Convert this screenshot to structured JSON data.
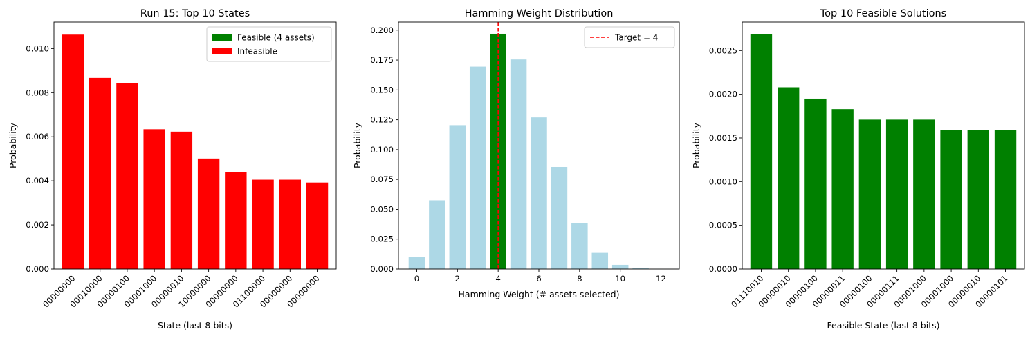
{
  "chart_data": [
    {
      "type": "bar",
      "title": "Run 15: Top 10 States",
      "xlabel": "State (last 8 bits)",
      "ylabel": "Probability",
      "categories": [
        "00000000",
        "00010000",
        "00000100",
        "00001000",
        "00000010",
        "10000000",
        "00000000",
        "01100000",
        "00000000",
        "00000000"
      ],
      "values": [
        0.01063,
        0.00867,
        0.00843,
        0.00634,
        0.00623,
        0.00501,
        0.00438,
        0.00405,
        0.00405,
        0.00392
      ],
      "bar_colors": [
        "#ff0000",
        "#ff0000",
        "#ff0000",
        "#ff0000",
        "#ff0000",
        "#ff0000",
        "#ff0000",
        "#ff0000",
        "#ff0000",
        "#ff0000"
      ],
      "ylim": [
        0,
        0.0112
      ],
      "yticks": [
        0.0,
        0.002,
        0.004,
        0.006,
        0.008,
        0.01
      ],
      "ytick_labels": [
        "0.000",
        "0.002",
        "0.004",
        "0.006",
        "0.008",
        "0.010"
      ],
      "grid": false,
      "legend": {
        "position": "top-right",
        "entries": [
          {
            "label": "Feasible (4 assets)",
            "color": "#008000",
            "kind": "patch"
          },
          {
            "label": "Infeasible",
            "color": "#ff0000",
            "kind": "patch"
          }
        ]
      }
    },
    {
      "type": "bar",
      "title": "Hamming Weight Distribution",
      "xlabel": "Hamming Weight (# assets selected)",
      "ylabel": "Probability",
      "x": [
        0,
        1,
        2,
        3,
        4,
        5,
        6,
        7,
        8,
        9,
        10,
        11,
        12
      ],
      "values": [
        0.0103,
        0.0575,
        0.1205,
        0.1695,
        0.197,
        0.1755,
        0.127,
        0.0855,
        0.0385,
        0.0135,
        0.0035,
        0.0008,
        0.0001
      ],
      "bar_colors": [
        "#add8e6",
        "#add8e6",
        "#add8e6",
        "#add8e6",
        "#008000",
        "#add8e6",
        "#add8e6",
        "#add8e6",
        "#add8e6",
        "#add8e6",
        "#add8e6",
        "#add8e6",
        "#add8e6"
      ],
      "xlim": [
        -0.9,
        12.9
      ],
      "xticks": [
        0,
        2,
        4,
        6,
        8,
        10,
        12
      ],
      "xtick_labels": [
        "0",
        "2",
        "4",
        "6",
        "8",
        "10",
        "12"
      ],
      "ylim": [
        0,
        0.2068
      ],
      "yticks": [
        0.0,
        0.025,
        0.05,
        0.075,
        0.1,
        0.125,
        0.15,
        0.175,
        0.2
      ],
      "ytick_labels": [
        "0.000",
        "0.025",
        "0.050",
        "0.075",
        "0.100",
        "0.125",
        "0.150",
        "0.175",
        "0.200"
      ],
      "vline": {
        "x": 4,
        "color": "#ff0000",
        "style": "dashed"
      },
      "grid": false,
      "legend": {
        "position": "top-right",
        "entries": [
          {
            "label": "Target = 4",
            "color": "#ff0000",
            "kind": "dashed-line"
          }
        ]
      }
    },
    {
      "type": "bar",
      "title": "Top 10 Feasible Solutions",
      "xlabel": "Feasible State (last 8 bits)",
      "ylabel": "Probability",
      "categories": [
        "01110010",
        "00000010",
        "00000100",
        "00000011",
        "00000100",
        "00000111",
        "00001000",
        "00001000",
        "00000010",
        "00000101"
      ],
      "values": [
        0.00269,
        0.00208,
        0.00195,
        0.00183,
        0.00171,
        0.00171,
        0.00171,
        0.00159,
        0.00159,
        0.00159
      ],
      "bar_colors": [
        "#008000",
        "#008000",
        "#008000",
        "#008000",
        "#008000",
        "#008000",
        "#008000",
        "#008000",
        "#008000",
        "#008000"
      ],
      "ylim": [
        0,
        0.002826
      ],
      "yticks": [
        0.0,
        0.0005,
        0.001,
        0.0015,
        0.002,
        0.0025
      ],
      "ytick_labels": [
        "0.0000",
        "0.0005",
        "0.0010",
        "0.0015",
        "0.0020",
        "0.0025"
      ],
      "grid": false
    }
  ]
}
